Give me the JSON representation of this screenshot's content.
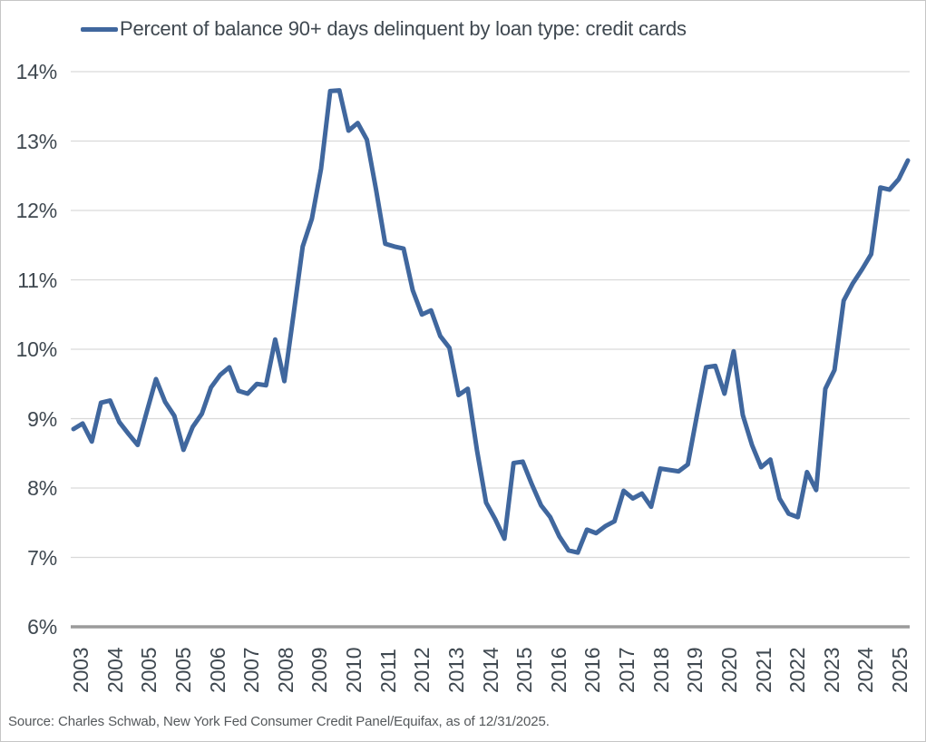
{
  "source_note": "Source: Charles Schwab, New York Fed Consumer Credit Panel/Equifax, as of 12/31/2025.",
  "colors": {
    "line": "#40679e",
    "gridline": "#d9d9d9",
    "axis_line": "#9b9b9b",
    "label_text": "#3f4850",
    "source_text": "#54585b"
  },
  "chart_data": {
    "type": "line",
    "title": "Percent of balance 90+ days delinquent by loan type: credit cards",
    "legend_position": "top",
    "grid": "horizontal",
    "ylim": [
      6,
      14
    ],
    "yticks": [
      "14%",
      "13%",
      "12%",
      "11%",
      "10%",
      "9%",
      "8%",
      "7%",
      "6%"
    ],
    "xticks": [
      "2003",
      "2004",
      "2005",
      "2005",
      "2006",
      "2007",
      "2008",
      "2009",
      "2010",
      "2011",
      "2012",
      "2013",
      "2014",
      "2015",
      "2016",
      "2016",
      "2017",
      "2018",
      "2019",
      "2020",
      "2021",
      "2022",
      "2023",
      "2024",
      "2025"
    ],
    "series": [
      {
        "name": "Percent of balance 90+ days delinquent by loan type: credit cards",
        "frequency": "quarterly",
        "x_start": "2003Q1",
        "x_end": "2025Q4",
        "unit": "%",
        "values": [
          8.85,
          8.93,
          8.67,
          9.23,
          9.26,
          8.95,
          8.78,
          8.62,
          9.1,
          9.57,
          9.24,
          9.04,
          8.55,
          8.88,
          9.07,
          9.45,
          9.63,
          9.74,
          9.4,
          9.36,
          9.5,
          9.48,
          10.14,
          9.54,
          10.5,
          11.48,
          11.88,
          12.6,
          13.72,
          13.73,
          13.15,
          13.26,
          13.02,
          12.3,
          11.52,
          11.48,
          11.45,
          10.85,
          10.5,
          10.56,
          10.19,
          10.02,
          9.34,
          9.43,
          8.55,
          7.79,
          7.55,
          7.27,
          8.36,
          8.38,
          8.05,
          7.75,
          7.58,
          7.3,
          7.1,
          7.07,
          7.4,
          7.35,
          7.45,
          7.52,
          7.96,
          7.85,
          7.92,
          7.73,
          8.28,
          8.26,
          8.24,
          8.34,
          9.05,
          9.74,
          9.76,
          9.36,
          9.97,
          9.05,
          8.62,
          8.3,
          8.41,
          7.85,
          7.63,
          7.58,
          8.23,
          7.97,
          9.43,
          9.7,
          10.7,
          10.95,
          11.15,
          11.37,
          12.33,
          12.3,
          12.45,
          12.72
        ]
      }
    ]
  }
}
